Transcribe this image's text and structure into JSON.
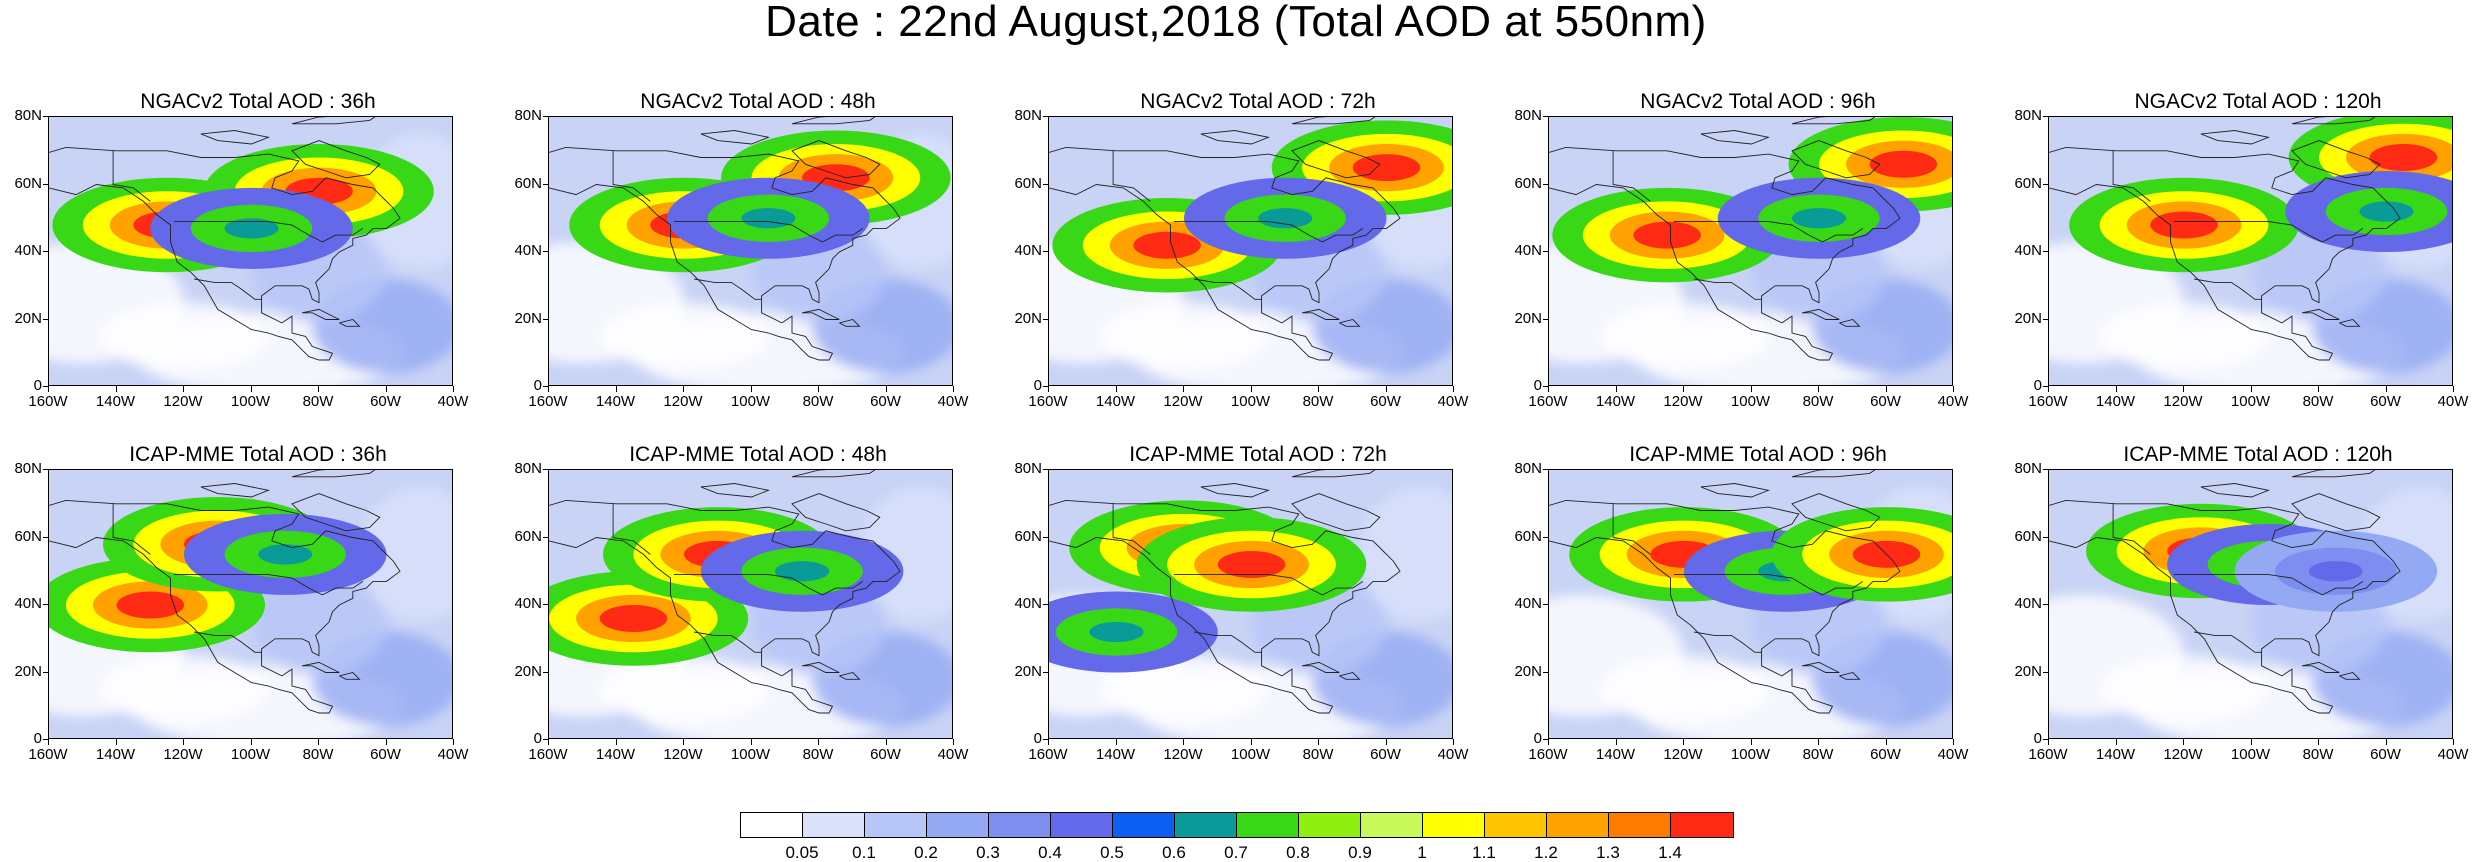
{
  "figure": {
    "title": "Date : 22nd August,2018 (Total AOD at 550nm)"
  },
  "axes": {
    "lat_labels": [
      "80N",
      "60N",
      "40N",
      "20N",
      "0"
    ],
    "lon_labels": [
      "160W",
      "140W",
      "120W",
      "100W",
      "80W",
      "60W",
      "40W"
    ]
  },
  "panels": [
    {
      "title": "NGACv2 Total AOD : 36h",
      "model": "NGACv2",
      "lead_hours": 36,
      "plumes": [
        {
          "lon": -125,
          "lat": 48,
          "level": "red"
        },
        {
          "lon": -80,
          "lat": 58,
          "level": "red"
        },
        {
          "lon": -100,
          "lat": 47,
          "level": "green"
        }
      ]
    },
    {
      "title": "NGACv2 Total AOD : 48h",
      "model": "NGACv2",
      "lead_hours": 48,
      "plumes": [
        {
          "lon": -120,
          "lat": 48,
          "level": "red"
        },
        {
          "lon": -75,
          "lat": 62,
          "level": "red"
        },
        {
          "lon": -95,
          "lat": 50,
          "level": "green"
        }
      ]
    },
    {
      "title": "NGACv2 Total AOD : 72h",
      "model": "NGACv2",
      "lead_hours": 72,
      "plumes": [
        {
          "lon": -125,
          "lat": 42,
          "level": "red"
        },
        {
          "lon": -60,
          "lat": 65,
          "level": "red"
        },
        {
          "lon": -90,
          "lat": 50,
          "level": "green"
        }
      ]
    },
    {
      "title": "NGACv2 Total AOD : 96h",
      "model": "NGACv2",
      "lead_hours": 96,
      "plumes": [
        {
          "lon": -125,
          "lat": 45,
          "level": "red"
        },
        {
          "lon": -55,
          "lat": 66,
          "level": "red"
        },
        {
          "lon": -80,
          "lat": 50,
          "level": "green"
        }
      ]
    },
    {
      "title": "NGACv2 Total AOD : 120h",
      "model": "NGACv2",
      "lead_hours": 120,
      "plumes": [
        {
          "lon": -120,
          "lat": 48,
          "level": "red"
        },
        {
          "lon": -55,
          "lat": 68,
          "level": "red"
        },
        {
          "lon": -60,
          "lat": 52,
          "level": "green"
        }
      ]
    },
    {
      "title": "ICAP-MME Total AOD : 36h",
      "model": "ICAP-MME",
      "lead_hours": 36,
      "plumes": [
        {
          "lon": -130,
          "lat": 40,
          "level": "red"
        },
        {
          "lon": -110,
          "lat": 58,
          "level": "red"
        },
        {
          "lon": -90,
          "lat": 55,
          "level": "green"
        }
      ]
    },
    {
      "title": "ICAP-MME Total AOD : 48h",
      "model": "ICAP-MME",
      "lead_hours": 48,
      "plumes": [
        {
          "lon": -135,
          "lat": 36,
          "level": "red"
        },
        {
          "lon": -110,
          "lat": 55,
          "level": "red"
        },
        {
          "lon": -85,
          "lat": 50,
          "level": "green"
        }
      ]
    },
    {
      "title": "ICAP-MME Total AOD : 72h",
      "model": "ICAP-MME",
      "lead_hours": 72,
      "plumes": [
        {
          "lon": -120,
          "lat": 57,
          "level": "red"
        },
        {
          "lon": -100,
          "lat": 52,
          "level": "red"
        },
        {
          "lon": -140,
          "lat": 32,
          "level": "green"
        }
      ]
    },
    {
      "title": "ICAP-MME Total AOD : 96h",
      "model": "ICAP-MME",
      "lead_hours": 96,
      "plumes": [
        {
          "lon": -120,
          "lat": 55,
          "level": "red"
        },
        {
          "lon": -90,
          "lat": 50,
          "level": "green"
        },
        {
          "lon": -60,
          "lat": 55,
          "level": "red"
        }
      ]
    },
    {
      "title": "ICAP-MME Total AOD : 120h",
      "model": "ICAP-MME",
      "lead_hours": 120,
      "plumes": [
        {
          "lon": -115,
          "lat": 56,
          "level": "red"
        },
        {
          "lon": -95,
          "lat": 52,
          "level": "green"
        },
        {
          "lon": -75,
          "lat": 50,
          "level": "blue"
        }
      ]
    }
  ],
  "colorbar": {
    "colors": [
      "#ffffff",
      "#d9e1fb",
      "#b8c6f7",
      "#93a9f3",
      "#7d8df0",
      "#6369e8",
      "#0b5ff2",
      "#0a9a98",
      "#38d816",
      "#8fef10",
      "#c8f95a",
      "#ffff00",
      "#ffc400",
      "#ffa200",
      "#ff7a00",
      "#ff2a14"
    ],
    "labels": [
      "0.05",
      "0.1",
      "0.2",
      "0.3",
      "0.4",
      "0.5",
      "0.6",
      "0.7",
      "0.8",
      "0.9",
      "1",
      "1.1",
      "1.2",
      "1.3",
      "1.4"
    ]
  }
}
